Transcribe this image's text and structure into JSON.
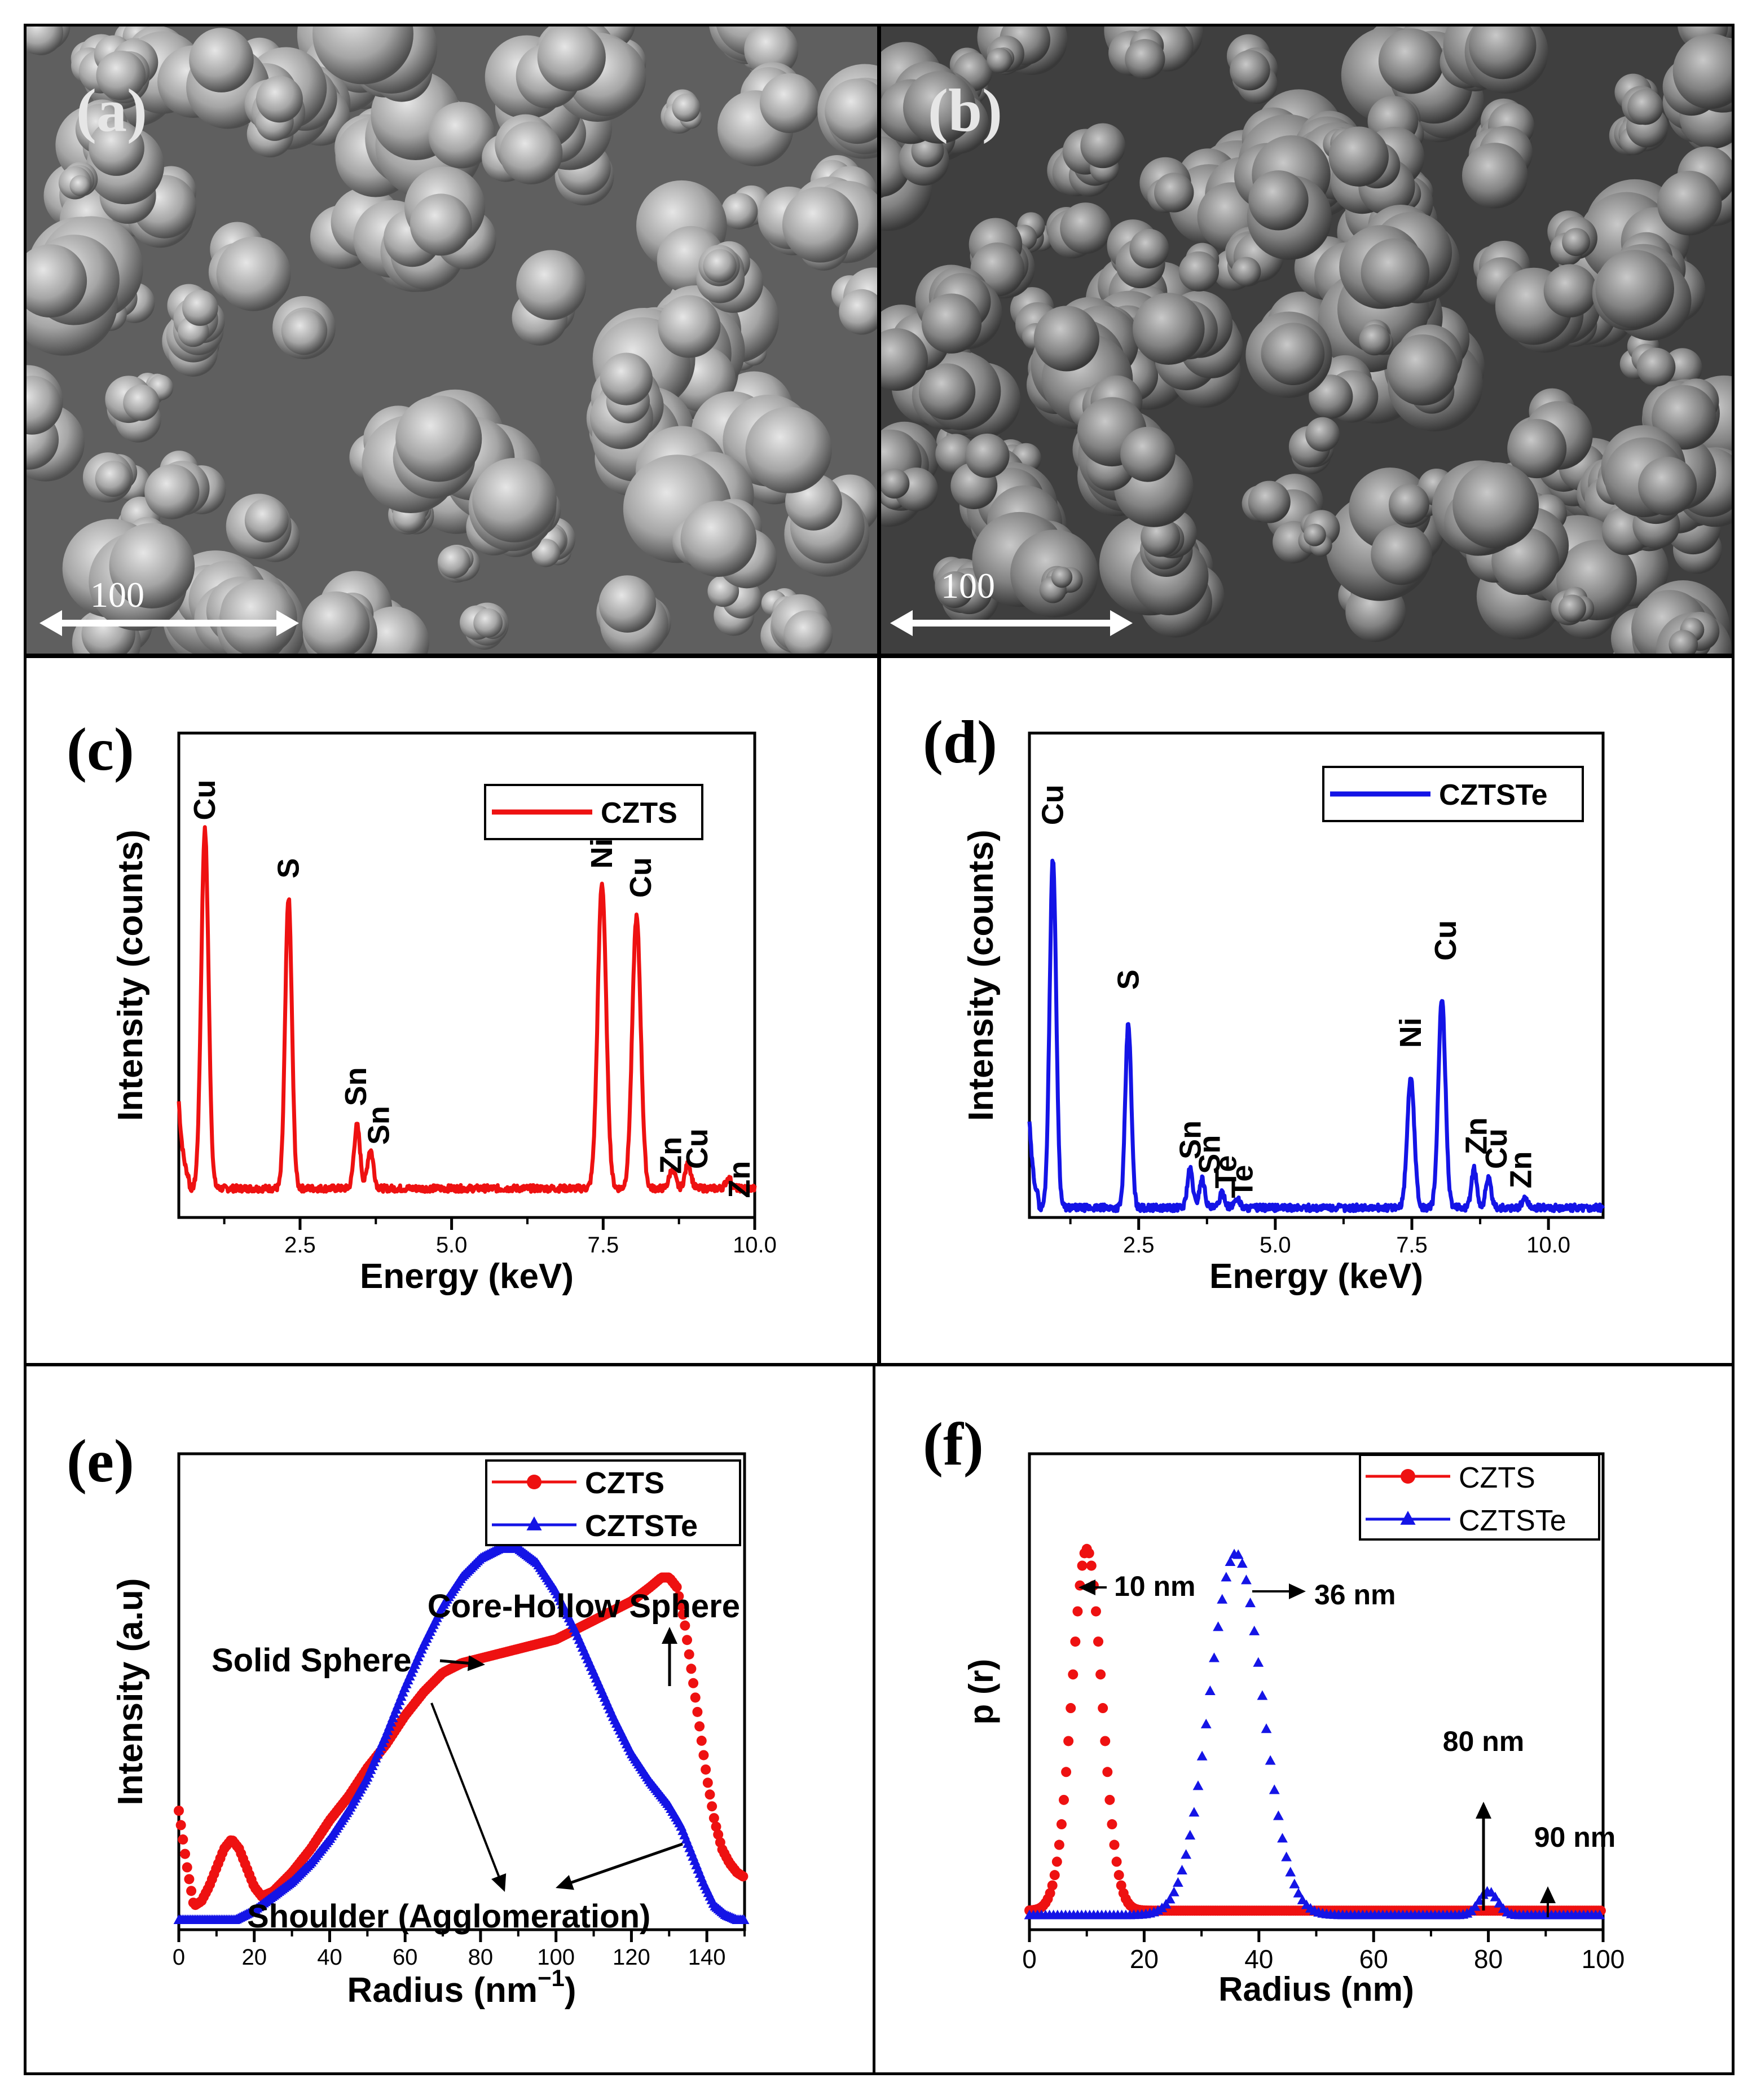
{
  "panels": {
    "a": {
      "label": "(a)",
      "scale_text": "100"
    },
    "b": {
      "label": "(b)",
      "scale_text": "100"
    },
    "c": {
      "label": "(c)"
    },
    "d": {
      "label": "(d)"
    },
    "e": {
      "label": "(e)"
    },
    "f": {
      "label": "(f)"
    }
  },
  "colors": {
    "red": "#ee1111",
    "blue": "#1414e6",
    "black": "#000000"
  },
  "chart_data": [
    {
      "id": "c",
      "type": "line",
      "xlabel": "Energy (keV)",
      "ylabel": "Intensity (counts)",
      "xlim": [
        0.5,
        10.0
      ],
      "ylim": [
        0,
        100
      ],
      "xticks": [
        "2.5",
        "5.0",
        "7.5",
        "10.0"
      ],
      "xtick_values": [
        2.5,
        5.0,
        7.5,
        10.0
      ],
      "legend": [
        "CZTS"
      ],
      "series": [
        {
          "name": "CZTS",
          "color": "#ee1111",
          "baseline": 6,
          "peaks": [
            {
              "x": 0.93,
              "h": 74,
              "w": 0.06
            },
            {
              "x": 2.31,
              "h": 60,
              "w": 0.055
            },
            {
              "x": 3.44,
              "h": 13,
              "w": 0.05
            },
            {
              "x": 3.66,
              "h": 8,
              "w": 0.05
            },
            {
              "x": 7.48,
              "h": 63,
              "w": 0.07
            },
            {
              "x": 8.05,
              "h": 56,
              "w": 0.07
            },
            {
              "x": 8.64,
              "h": 4,
              "w": 0.05
            },
            {
              "x": 8.9,
              "h": 5,
              "w": 0.05
            },
            {
              "x": 9.57,
              "h": 2,
              "w": 0.05
            }
          ]
        }
      ],
      "peak_labels": [
        {
          "text": "Cu",
          "x": 0.93,
          "y": 82
        },
        {
          "text": "S",
          "x": 2.31,
          "y": 70
        },
        {
          "text": "Sn",
          "x": 3.42,
          "y": 23
        },
        {
          "text": "Sn",
          "x": 3.8,
          "y": 15
        },
        {
          "text": "Ni",
          "x": 7.48,
          "y": 72
        },
        {
          "text": "Cu",
          "x": 8.12,
          "y": 66
        },
        {
          "text": "Zn",
          "x": 8.62,
          "y": 9
        },
        {
          "text": "Cu",
          "x": 9.05,
          "y": 10
        },
        {
          "text": "Zn",
          "x": 9.75,
          "y": 4
        }
      ]
    },
    {
      "id": "d",
      "type": "line",
      "xlabel": "Energy (keV)",
      "ylabel": "Intensity (counts)",
      "xlim": [
        0.5,
        11.0
      ],
      "ylim": [
        0,
        100
      ],
      "xticks": [
        "2.5",
        "5.0",
        "7.5",
        "10.0"
      ],
      "xtick_values": [
        2.5,
        5.0,
        7.5,
        10.0
      ],
      "legend": [
        "CZTSTe"
      ],
      "series": [
        {
          "name": "CZTSTe",
          "color": "#1414e6",
          "baseline": 2,
          "peaks": [
            {
              "x": 0.93,
              "h": 72,
              "w": 0.06
            },
            {
              "x": 2.31,
              "h": 38,
              "w": 0.055
            },
            {
              "x": 3.44,
              "h": 8,
              "w": 0.05
            },
            {
              "x": 3.66,
              "h": 6,
              "w": 0.05
            },
            {
              "x": 4.03,
              "h": 3,
              "w": 0.05
            },
            {
              "x": 4.3,
              "h": 2,
              "w": 0.05
            },
            {
              "x": 7.48,
              "h": 27,
              "w": 0.065
            },
            {
              "x": 8.05,
              "h": 43,
              "w": 0.065
            },
            {
              "x": 8.64,
              "h": 8,
              "w": 0.05
            },
            {
              "x": 8.9,
              "h": 6,
              "w": 0.05
            },
            {
              "x": 9.57,
              "h": 2,
              "w": 0.05
            }
          ]
        }
      ],
      "peak_labels": [
        {
          "text": "Cu",
          "x": 0.93,
          "y": 81
        },
        {
          "text": "S",
          "x": 2.31,
          "y": 47
        },
        {
          "text": "Sn",
          "x": 3.45,
          "y": 12
        },
        {
          "text": "Sn",
          "x": 3.8,
          "y": 9
        },
        {
          "text": "Te",
          "x": 4.1,
          "y": 6
        },
        {
          "text": "Te",
          "x": 4.4,
          "y": 4
        },
        {
          "text": "Ni",
          "x": 7.48,
          "y": 35
        },
        {
          "text": "Cu",
          "x": 8.12,
          "y": 53
        },
        {
          "text": "Zn",
          "x": 8.68,
          "y": 13
        },
        {
          "text": "Cu",
          "x": 9.05,
          "y": 10
        },
        {
          "text": "Zn",
          "x": 9.5,
          "y": 6
        }
      ]
    },
    {
      "id": "e",
      "type": "scatter",
      "xlabel": "Radius (nm",
      "xlabel_sup": "−1",
      "xlabel_end": ")",
      "ylabel": "Intensity (a.u)",
      "xlim": [
        0,
        150
      ],
      "ylim": [
        0,
        100
      ],
      "xticks": [
        "0",
        "20",
        "40",
        "60",
        "80",
        "100",
        "120",
        "140"
      ],
      "xtick_values": [
        0,
        20,
        40,
        60,
        80,
        100,
        120,
        140
      ],
      "legend": [
        "CZTS",
        "CZTSTe"
      ],
      "series": [
        {
          "name": "CZTS",
          "color": "#ee1111",
          "marker": "circle",
          "x": [
            0,
            2,
            4,
            6,
            8,
            10,
            12,
            14,
            16,
            18,
            20,
            22,
            25,
            30,
            35,
            40,
            45,
            50,
            55,
            60,
            65,
            70,
            75,
            80,
            85,
            90,
            95,
            100,
            105,
            110,
            115,
            120,
            125,
            128,
            130,
            132,
            134,
            136,
            138,
            140,
            142,
            144,
            146,
            148,
            150
          ],
          "y": [
            25,
            14,
            5,
            6,
            9,
            13,
            17,
            19,
            17,
            13,
            9,
            7,
            8,
            12,
            17,
            23,
            28,
            34,
            39,
            45,
            50,
            54,
            56,
            57,
            58,
            59,
            60,
            61,
            63,
            65,
            67,
            69,
            72,
            74,
            74,
            72,
            65,
            54,
            43,
            32,
            23,
            17,
            14,
            12,
            11
          ]
        },
        {
          "name": "CZTSTe",
          "color": "#1414e6",
          "marker": "triangle",
          "x": [
            0,
            5,
            10,
            15,
            20,
            25,
            30,
            35,
            40,
            45,
            50,
            55,
            60,
            65,
            70,
            75,
            80,
            85,
            90,
            95,
            100,
            105,
            110,
            115,
            120,
            125,
            130,
            133,
            136,
            139,
            142,
            145,
            148,
            150
          ],
          "y": [
            2,
            2,
            2,
            2,
            4,
            7,
            10,
            14,
            19,
            25,
            32,
            41,
            51,
            60,
            68,
            74,
            78,
            80,
            80,
            77,
            71,
            63,
            54,
            45,
            37,
            31,
            26,
            22,
            16,
            10,
            5,
            3,
            2,
            2
          ]
        }
      ],
      "annotations": {
        "core_hollow": "Core-Hollow Sphere",
        "solid": "Solid Sphere",
        "shoulder": "Shoulder (Agglomeration)"
      }
    },
    {
      "id": "f",
      "type": "scatter",
      "xlabel": "Radius (nm)",
      "ylabel": "p (r)",
      "xlim": [
        0,
        100
      ],
      "ylim": [
        0,
        100
      ],
      "xticks": [
        "0",
        "20",
        "40",
        "60",
        "80",
        "100"
      ],
      "xtick_values": [
        0,
        20,
        40,
        60,
        80,
        100
      ],
      "legend": [
        "CZTS",
        "CZTSTe"
      ],
      "series": [
        {
          "name": "CZTS",
          "color": "#ee1111",
          "marker": "circle",
          "gauss": [
            {
              "mu": 10,
              "sigma": 2.6,
              "h": 76
            }
          ],
          "baseline": 4,
          "step": 0.4
        },
        {
          "name": "CZTSTe",
          "color": "#1414e6",
          "marker": "triangle",
          "gauss": [
            {
              "mu": 36,
              "sigma": 4.6,
              "h": 76
            },
            {
              "mu": 80,
              "sigma": 1.6,
              "h": 5
            }
          ],
          "baseline": 3,
          "step": 0.7
        }
      ],
      "annotations": {
        "p10": "10 nm",
        "p36": "36 nm",
        "p80": "80 nm",
        "p90": "90 nm"
      }
    }
  ]
}
